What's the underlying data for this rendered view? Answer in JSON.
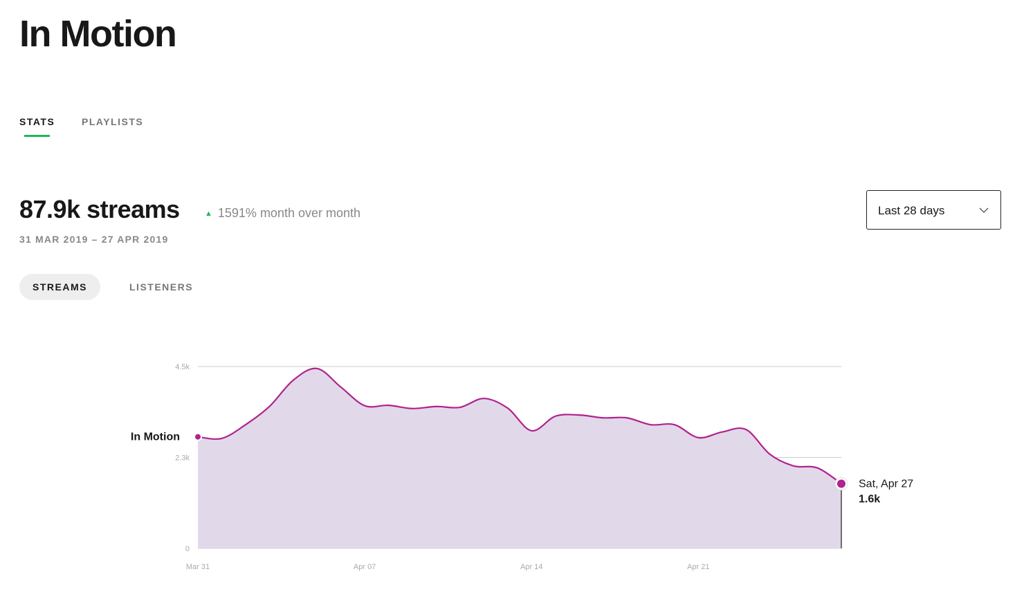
{
  "header": {
    "title": "In Motion"
  },
  "tabs": [
    "STATS",
    "PLAYLISTS"
  ],
  "summary": {
    "streams": "87.9k streams",
    "change": "1591% month over month",
    "date_range": "31 MAR 2019 – 27 APR 2019"
  },
  "range_select": "Last 28 days",
  "metric_tabs": [
    "STREAMS",
    "LISTENERS"
  ],
  "chart_data": {
    "type": "area",
    "categories": [
      "Mar 31",
      null,
      null,
      null,
      null,
      null,
      null,
      "Apr 07",
      null,
      null,
      null,
      null,
      null,
      null,
      "Apr 14",
      null,
      null,
      null,
      null,
      null,
      null,
      "Apr 21",
      null,
      null,
      null,
      null,
      null,
      null
    ],
    "series": [
      {
        "name": "In Motion",
        "color": "#b0228c",
        "fill": "#e1d8ea",
        "values": [
          2760,
          2720,
          3060,
          3510,
          4160,
          4450,
          3990,
          3530,
          3540,
          3460,
          3510,
          3490,
          3710,
          3470,
          2910,
          3270,
          3300,
          3230,
          3230,
          3060,
          3060,
          2740,
          2880,
          2940,
          2330,
          2040,
          1990,
          1600
        ]
      }
    ],
    "ylim": [
      0,
      4500
    ],
    "yticks": [
      0,
      {
        "value": 2250,
        "label": "2.3k"
      },
      {
        "value": 4500,
        "label": "4.5k"
      }
    ],
    "grid": true,
    "tooltip": {
      "date": "Sat, Apr 27",
      "label": "1.6k"
    }
  }
}
